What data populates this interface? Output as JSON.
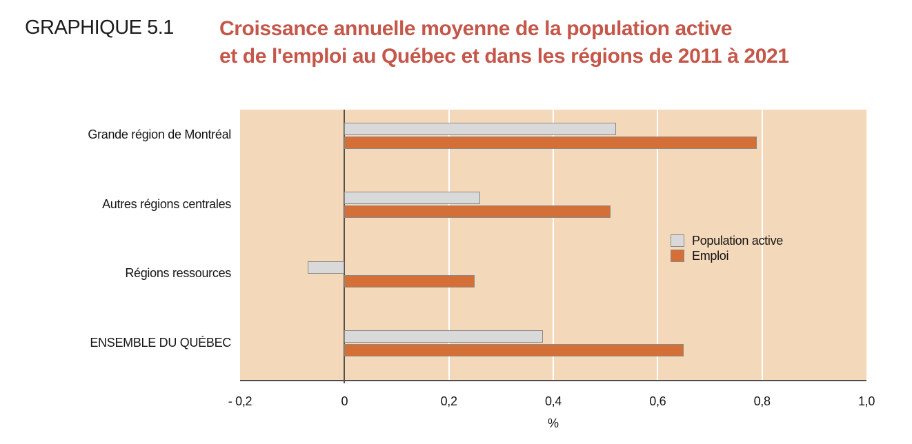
{
  "header": {
    "figure_label": "GRAPHIQUE 5.1",
    "title_line1": "Croissance annuelle moyenne de la population active",
    "title_line2": "et de l'emploi au Québec et dans les régions de 2011 à 2021"
  },
  "chart_data": {
    "type": "bar",
    "orientation": "horizontal",
    "title": "Croissance annuelle moyenne de la population active et de l'emploi au Québec et dans les régions de 2011 à 2021",
    "categories": [
      "Grande région de Montréal",
      "Autres régions centrales",
      "Régions ressources",
      "ENSEMBLE DU QUÉBEC"
    ],
    "series": [
      {
        "name": "Population active",
        "color": "#d9d9d9",
        "values": [
          0.52,
          0.26,
          -0.07,
          0.38
        ]
      },
      {
        "name": "Emploi",
        "color": "#d46f37",
        "values": [
          0.79,
          0.51,
          0.25,
          0.65
        ]
      }
    ],
    "xlabel": "%",
    "xlim": [
      -0.2,
      1.0
    ],
    "xticks": [
      -0.2,
      0,
      0.2,
      0.4,
      0.6,
      0.8,
      1.0
    ],
    "xtick_labels": [
      "- 0,2",
      "0",
      "0,2",
      "0,4",
      "0,6",
      "0,8",
      "1,0"
    ],
    "grid": "vertical-white-gridlines",
    "legend_position": "inside-right",
    "plot_background": "#f4d8ba"
  },
  "colors": {
    "title_red": "#c5574a",
    "plot_background": "#f4d8ba",
    "bar_population_active": "#d9d9d9",
    "bar_emploi": "#d46f37",
    "bar_border": "#8a8a8a",
    "axis_line": "#4d4d4d",
    "gridline": "#ffffff",
    "text": "#141414"
  }
}
